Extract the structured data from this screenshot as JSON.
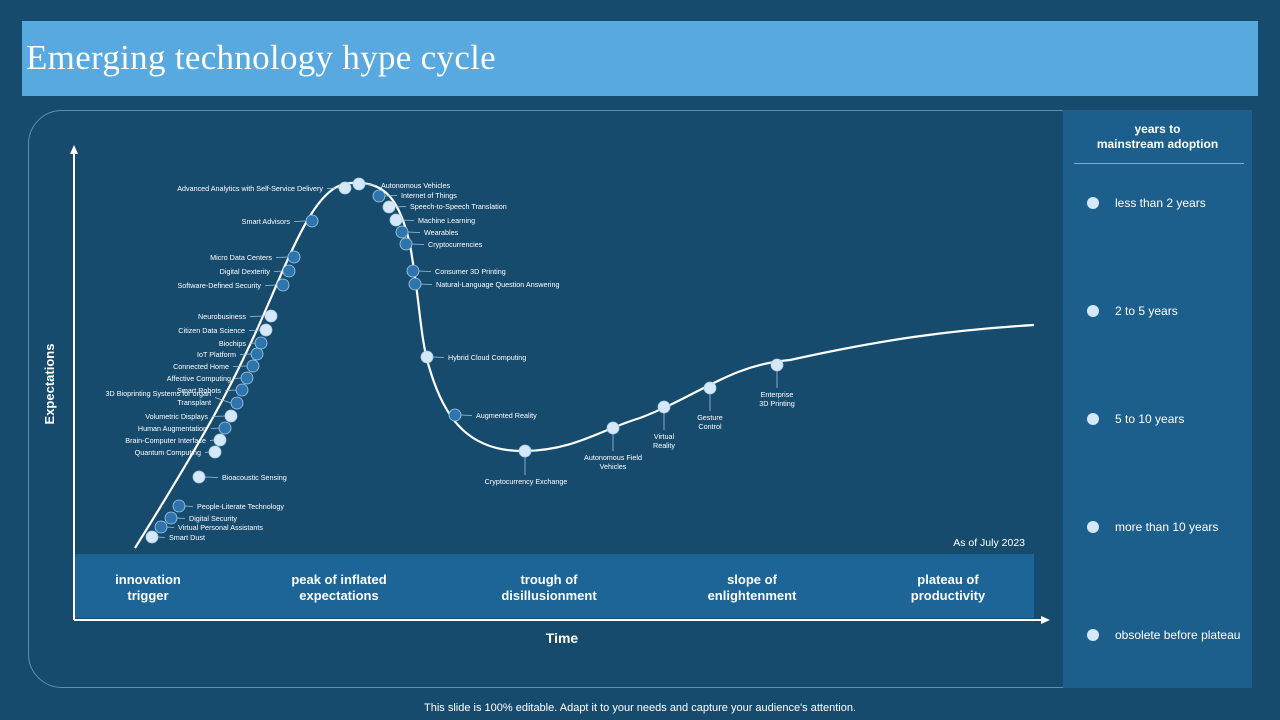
{
  "title": "Emerging technology hype cycle",
  "axes": {
    "y_label": "Expectations",
    "x_label": "Time"
  },
  "as_of": "As of July 2023",
  "phases": [
    {
      "label": "innovation\ntrigger"
    },
    {
      "label": "peak of inflated\nexpectations"
    },
    {
      "label": "trough of\ndisillusionment"
    },
    {
      "label": "slope of\nenlightenment"
    },
    {
      "label": "plateau of\nproductivity"
    }
  ],
  "legend": {
    "title": "years to\nmainstream adoption",
    "items": [
      {
        "label": "less than 2 years"
      },
      {
        "label": "2 to 5 years"
      },
      {
        "label": "5 to 10 years"
      },
      {
        "label": "more than 10 years"
      },
      {
        "label": "obsolete before plateau"
      }
    ]
  },
  "colors": {
    "background": "#174b6d",
    "title_bar": "#57a9df",
    "panel": "#1d5f8c",
    "dot_light": "#d5e8f7",
    "dot_mid": "#2e75ad"
  },
  "technologies": [
    {
      "name": "Advanced Analytics with Self-Service Delivery",
      "phase": "peak of inflated expectations"
    },
    {
      "name": "Autonomous Vehicles",
      "phase": "peak of inflated expectations"
    },
    {
      "name": "Internet of Things",
      "phase": "peak of inflated expectations"
    },
    {
      "name": "Speech-to-Speech Translation",
      "phase": "peak of inflated expectations"
    },
    {
      "name": "Smart Advisors",
      "phase": "peak of inflated expectations"
    },
    {
      "name": "Machine Learning",
      "phase": "trough of disillusionment"
    },
    {
      "name": "Wearables",
      "phase": "trough of disillusionment"
    },
    {
      "name": "Cryptocurrencies",
      "phase": "trough of disillusionment"
    },
    {
      "name": "Micro Data Centers",
      "phase": "innovation trigger"
    },
    {
      "name": "Digital Dexterity",
      "phase": "innovation trigger"
    },
    {
      "name": "Consumer 3D Printing",
      "phase": "trough of disillusionment"
    },
    {
      "name": "Software-Defined Security",
      "phase": "innovation trigger"
    },
    {
      "name": "Natural-Language Question Answering",
      "phase": "trough of disillusionment"
    },
    {
      "name": "Neurobusiness",
      "phase": "innovation trigger"
    },
    {
      "name": "Citizen Data Science",
      "phase": "innovation trigger"
    },
    {
      "name": "Biochips",
      "phase": "innovation trigger"
    },
    {
      "name": "IoT Platform",
      "phase": "innovation trigger"
    },
    {
      "name": "Hybrid Cloud Computing",
      "phase": "trough of disillusionment"
    },
    {
      "name": "Connected Home",
      "phase": "innovation trigger"
    },
    {
      "name": "Affective Computing",
      "phase": "innovation trigger"
    },
    {
      "name": "Smart Robots",
      "phase": "innovation trigger"
    },
    {
      "name": "3D Bioprinting Systems for organ Transplant",
      "phase": "innovation trigger"
    },
    {
      "name": "Volumetric Displays",
      "phase": "innovation trigger"
    },
    {
      "name": "Augmented Reality",
      "phase": "trough of disillusionment"
    },
    {
      "name": "Human Augmentation",
      "phase": "innovation trigger"
    },
    {
      "name": "Brain-Computer Interface",
      "phase": "innovation trigger"
    },
    {
      "name": "Quantum Computing",
      "phase": "innovation trigger"
    },
    {
      "name": "Enterprise 3D Printing",
      "phase": "slope of enlightenment"
    },
    {
      "name": "Gesture Control",
      "phase": "slope of enlightenment"
    },
    {
      "name": "Virtual Reality",
      "phase": "slope of enlightenment"
    },
    {
      "name": "Autonomous Field Vehicles",
      "phase": "slope of enlightenment"
    },
    {
      "name": "Bioacoustic Sensing",
      "phase": "innovation trigger"
    },
    {
      "name": "Cryptocurrency Exchange",
      "phase": "trough of disillusionment"
    },
    {
      "name": "People-Literate Technology",
      "phase": "innovation trigger"
    },
    {
      "name": "Digital Security",
      "phase": "innovation trigger"
    },
    {
      "name": "Virtual Personal Assistants",
      "phase": "innovation trigger"
    },
    {
      "name": "Smart Dust",
      "phase": "innovation trigger"
    }
  ],
  "footer": "This slide is 100% editable. Adapt it to your needs and capture your audience's attention."
}
